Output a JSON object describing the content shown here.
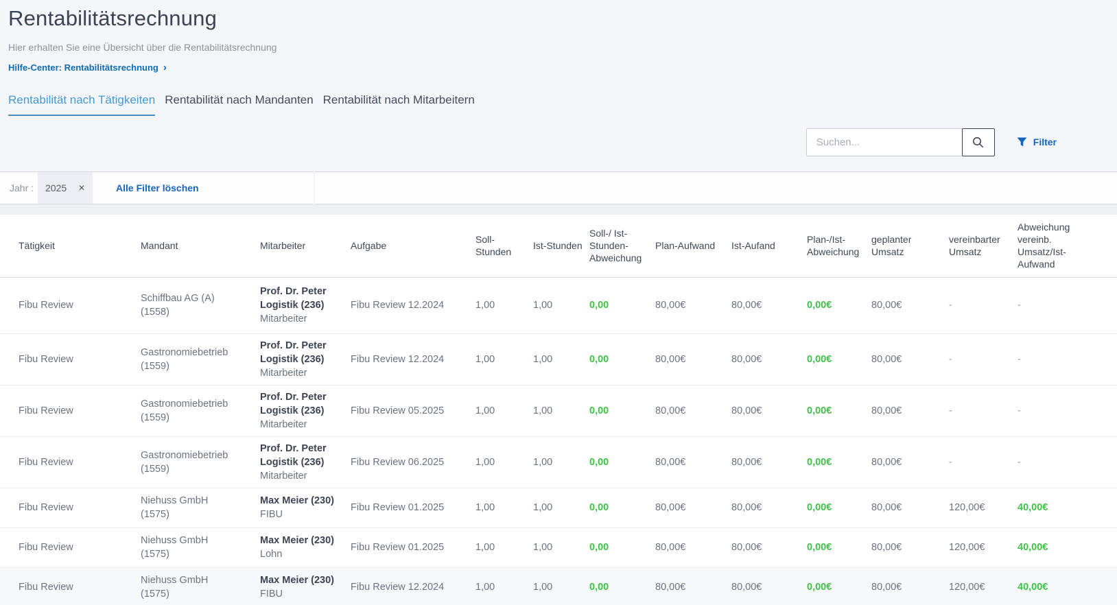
{
  "page": {
    "title": "Rentabilitätsrechnung",
    "subtitle": "Hier erhalten Sie eine Übersicht über die Rentabilitätsrechnung",
    "help_link_label": "Hilfe-Center: Rentabilitätsrechnung",
    "help_chevron": "›"
  },
  "tabs": [
    {
      "label": "Rentabilität nach Tätigkeiten",
      "active": true
    },
    {
      "label": "Rentabilität nach Mandanten",
      "active": false
    },
    {
      "label": "Rentabilität nach Mitarbeitern",
      "active": false
    }
  ],
  "search": {
    "placeholder": "Suchen...",
    "button_icon": "magnifier-icon"
  },
  "filter_button": {
    "label": "Filter",
    "icon": "funnel-icon"
  },
  "filter_bar": {
    "field_label": "Jahr :",
    "chip_value": "2025",
    "chip_remove_glyph": "✕",
    "clear_all_label": "Alle Filter löschen"
  },
  "colors": {
    "accent_blue": "#1565c0",
    "link_blue": "#0f6cb5",
    "active_tab_blue": "#4499d6",
    "positive_green": "#42c24a",
    "top_background": "#f5f6f9"
  },
  "table": {
    "columns": [
      {
        "label": "Tätigkeit",
        "key": "taetigkeit"
      },
      {
        "label": "Mandant",
        "key": "mandant"
      },
      {
        "label": "Mitarbeiter",
        "key": "mitarbeiter"
      },
      {
        "label": "Aufgabe",
        "key": "aufgabe"
      },
      {
        "label": "Soll-Stunden",
        "key": "soll_stunden"
      },
      {
        "label": "Ist-Stunden",
        "key": "ist_stunden"
      },
      {
        "label": "Soll-/ Ist-Stunden-Abweichung",
        "key": "soll_ist_abweichung",
        "green": true
      },
      {
        "label": "Plan-Aufwand",
        "key": "plan_aufwand"
      },
      {
        "label": "Ist-Aufand",
        "key": "ist_aufwand"
      },
      {
        "label": "Plan-/Ist-Abweichung",
        "key": "plan_ist_abweichung",
        "green": true
      },
      {
        "label": "geplanter Umsatz",
        "key": "geplanter_umsatz"
      },
      {
        "label": "vereinbarter Umsatz",
        "key": "vereinbarter_umsatz"
      },
      {
        "label": "Abweichung vereinb.\nUmsatz/Ist-\nAufwand",
        "key": "abweichung_vereinb",
        "green": true
      }
    ],
    "rows": [
      {
        "taetigkeit": "Fibu Review",
        "mandant": "Schiffbau AG (A)\n(1558)",
        "mitarbeiter_name": "Prof. Dr. Peter\nLogistik (236)",
        "mitarbeiter_rolle": "Mitarbeiter",
        "aufgabe": "Fibu Review 12.2024",
        "soll_stunden": "1,00",
        "ist_stunden": "1,00",
        "soll_ist_abweichung": "0,00",
        "plan_aufwand": "80,00€",
        "ist_aufwand": "80,00€",
        "plan_ist_abweichung": "0,00€",
        "geplanter_umsatz": "80,00€",
        "vereinbarter_umsatz": "-",
        "abweichung_vereinb": "-"
      },
      {
        "taetigkeit": "Fibu Review",
        "mandant": "Gastronomiebetrieb\n(1559)",
        "mitarbeiter_name": "Prof. Dr. Peter\nLogistik (236)",
        "mitarbeiter_rolle": "Mitarbeiter",
        "aufgabe": "Fibu Review 12.2024",
        "soll_stunden": "1,00",
        "ist_stunden": "1,00",
        "soll_ist_abweichung": "0,00",
        "plan_aufwand": "80,00€",
        "ist_aufwand": "80,00€",
        "plan_ist_abweichung": "0,00€",
        "geplanter_umsatz": "80,00€",
        "vereinbarter_umsatz": "-",
        "abweichung_vereinb": "-"
      },
      {
        "taetigkeit": "Fibu Review",
        "mandant": "Gastronomiebetrieb\n(1559)",
        "mitarbeiter_name": "Prof. Dr. Peter\nLogistik (236)",
        "mitarbeiter_rolle": "Mitarbeiter",
        "aufgabe": "Fibu Review 05.2025",
        "soll_stunden": "1,00",
        "ist_stunden": "1,00",
        "soll_ist_abweichung": "0,00",
        "plan_aufwand": "80,00€",
        "ist_aufwand": "80,00€",
        "plan_ist_abweichung": "0,00€",
        "geplanter_umsatz": "80,00€",
        "vereinbarter_umsatz": "-",
        "abweichung_vereinb": "-"
      },
      {
        "taetigkeit": "Fibu Review",
        "mandant": "Gastronomiebetrieb\n(1559)",
        "mitarbeiter_name": "Prof. Dr. Peter\nLogistik (236)",
        "mitarbeiter_rolle": "Mitarbeiter",
        "aufgabe": "Fibu Review 06.2025",
        "soll_stunden": "1,00",
        "ist_stunden": "1,00",
        "soll_ist_abweichung": "0,00",
        "plan_aufwand": "80,00€",
        "ist_aufwand": "80,00€",
        "plan_ist_abweichung": "0,00€",
        "geplanter_umsatz": "80,00€",
        "vereinbarter_umsatz": "-",
        "abweichung_vereinb": "-"
      },
      {
        "taetigkeit": "Fibu Review",
        "mandant": "Niehuss GmbH\n(1575)",
        "mitarbeiter_name": "Max Meier (230)",
        "mitarbeiter_rolle": "FIBU",
        "aufgabe": "Fibu Review 01.2025",
        "soll_stunden": "1,00",
        "ist_stunden": "1,00",
        "soll_ist_abweichung": "0,00",
        "plan_aufwand": "80,00€",
        "ist_aufwand": "80,00€",
        "plan_ist_abweichung": "0,00€",
        "geplanter_umsatz": "80,00€",
        "vereinbarter_umsatz": "120,00€",
        "abweichung_vereinb": "40,00€"
      },
      {
        "taetigkeit": "Fibu Review",
        "mandant": "Niehuss GmbH\n(1575)",
        "mitarbeiter_name": "Max Meier (230)",
        "mitarbeiter_rolle": "Lohn",
        "aufgabe": "Fibu Review 01.2025",
        "soll_stunden": "1,00",
        "ist_stunden": "1,00",
        "soll_ist_abweichung": "0,00",
        "plan_aufwand": "80,00€",
        "ist_aufwand": "80,00€",
        "plan_ist_abweichung": "0,00€",
        "geplanter_umsatz": "80,00€",
        "vereinbarter_umsatz": "120,00€",
        "abweichung_vereinb": "40,00€"
      },
      {
        "taetigkeit": "Fibu Review",
        "mandant": "Niehuss GmbH\n(1575)",
        "mitarbeiter_name": "Max Meier (230)",
        "mitarbeiter_rolle": "FIBU",
        "aufgabe": "Fibu Review 12.2024",
        "soll_stunden": "1,00",
        "ist_stunden": "1,00",
        "soll_ist_abweichung": "0,00",
        "plan_aufwand": "80,00€",
        "ist_aufwand": "80,00€",
        "plan_ist_abweichung": "0,00€",
        "geplanter_umsatz": "80,00€",
        "vereinbarter_umsatz": "120,00€",
        "abweichung_vereinb": "40,00€"
      }
    ]
  }
}
